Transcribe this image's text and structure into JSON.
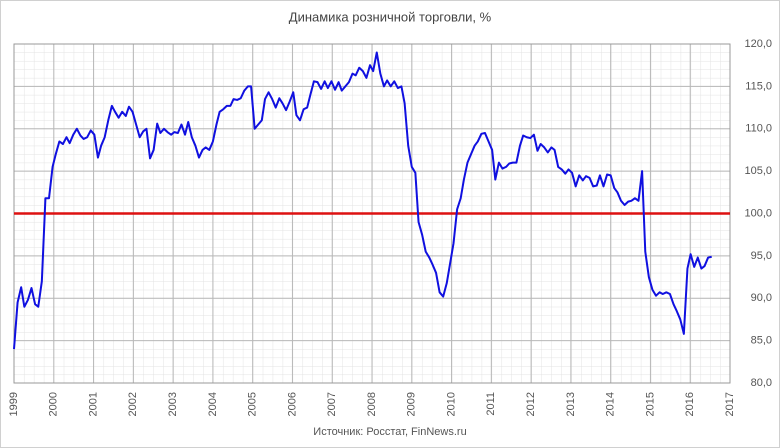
{
  "chart_data": {
    "type": "line",
    "title": "Динамика розничной торговли, %",
    "source": "Источник: Росстат, FinNews.ru",
    "x": [
      1999.0,
      1999.09,
      1999.18,
      1999.26,
      1999.35,
      1999.44,
      1999.53,
      1999.61,
      1999.7,
      1999.79,
      1999.88,
      1999.97,
      2000.05,
      2000.14,
      2000.23,
      2000.32,
      2000.4,
      2000.49,
      2000.58,
      2000.67,
      2000.75,
      2000.84,
      2000.93,
      2001.02,
      2001.11,
      2001.19,
      2001.28,
      2001.37,
      2001.46,
      2001.54,
      2001.63,
      2001.72,
      2001.81,
      2001.89,
      2001.98,
      2002.07,
      2002.16,
      2002.25,
      2002.33,
      2002.42,
      2002.51,
      2002.6,
      2002.68,
      2002.77,
      2002.86,
      2002.95,
      2003.03,
      2003.12,
      2003.21,
      2003.3,
      2003.38,
      2003.47,
      2003.56,
      2003.65,
      2003.74,
      2003.82,
      2003.91,
      2004.0,
      2004.09,
      2004.17,
      2004.26,
      2004.35,
      2004.44,
      2004.52,
      2004.61,
      2004.7,
      2004.79,
      2004.88,
      2004.96,
      2005.05,
      2005.14,
      2005.23,
      2005.31,
      2005.4,
      2005.49,
      2005.58,
      2005.67,
      2005.75,
      2005.84,
      2005.93,
      2006.02,
      2006.1,
      2006.19,
      2006.28,
      2006.37,
      2006.45,
      2006.54,
      2006.63,
      2006.72,
      2006.81,
      2006.89,
      2006.98,
      2007.07,
      2007.16,
      2007.24,
      2007.33,
      2007.42,
      2007.51,
      2007.59,
      2007.68,
      2007.77,
      2007.86,
      2007.95,
      2008.03,
      2008.12,
      2008.21,
      2008.3,
      2008.38,
      2008.47,
      2008.56,
      2008.65,
      2008.74,
      2008.82,
      2008.91,
      2009.0,
      2009.09,
      2009.17,
      2009.26,
      2009.35,
      2009.44,
      2009.52,
      2009.61,
      2009.7,
      2009.79,
      2009.88,
      2009.96,
      2010.05,
      2010.14,
      2010.23,
      2010.31,
      2010.4,
      2010.49,
      2010.58,
      2010.66,
      2010.75,
      2010.84,
      2010.93,
      2011.02,
      2011.1,
      2011.19,
      2011.28,
      2011.37,
      2011.45,
      2011.54,
      2011.63,
      2011.72,
      2011.8,
      2011.89,
      2011.98,
      2012.07,
      2012.16,
      2012.24,
      2012.33,
      2012.42,
      2012.51,
      2012.59,
      2012.68,
      2012.77,
      2012.86,
      2012.94,
      2013.03,
      2013.12,
      2013.21,
      2013.3,
      2013.38,
      2013.47,
      2013.56,
      2013.65,
      2013.73,
      2013.82,
      2013.91,
      2014.0,
      2014.09,
      2014.17,
      2014.26,
      2014.35,
      2014.44,
      2014.52,
      2014.61,
      2014.7,
      2014.79,
      2014.87,
      2014.96,
      2015.05,
      2015.14,
      2015.23,
      2015.31,
      2015.4,
      2015.49,
      2015.58,
      2015.66,
      2015.75,
      2015.84,
      2015.93,
      2016.01,
      2016.1,
      2016.19,
      2016.28,
      2016.36,
      2016.45,
      2016.54
    ],
    "series": [
      {
        "color": "#1010e0",
        "values": [
          84,
          89.5,
          91.3,
          89,
          89.8,
          91.2,
          89.3,
          89,
          92,
          101.8,
          101.8,
          105.5,
          107,
          108.5,
          108.2,
          109,
          108.3,
          109.3,
          110,
          109.2,
          108.8,
          109,
          109.8,
          109.3,
          106.6,
          108,
          109,
          111,
          112.7,
          112,
          111.3,
          112,
          111.5,
          112.6,
          112,
          110.5,
          109,
          109.7,
          110,
          106.5,
          107.5,
          110.6,
          109.5,
          110,
          109.6,
          109.3,
          109.6,
          109.5,
          110.5,
          109.3,
          110.8,
          109,
          108,
          106.6,
          107.5,
          107.8,
          107.5,
          108.5,
          110.5,
          112,
          112.3,
          112.7,
          112.7,
          113.5,
          113.4,
          113.6,
          114.5,
          115,
          115,
          110,
          110.5,
          111,
          113.5,
          114.3,
          113.5,
          112.5,
          113.6,
          113,
          112.2,
          113.2,
          114.3,
          111.6,
          111,
          112.3,
          112.5,
          114,
          115.6,
          115.5,
          114.7,
          115.6,
          114.8,
          115.6,
          114.6,
          115.5,
          114.5,
          115,
          115.5,
          116.5,
          116.3,
          117.2,
          116.8,
          116,
          117.5,
          116.8,
          119,
          116.5,
          115,
          115.7,
          115,
          115.6,
          114.8,
          115,
          113,
          108,
          105.5,
          104.8,
          99,
          97.5,
          95.5,
          94.8,
          94,
          93,
          90.7,
          90.2,
          91.8,
          94,
          96.5,
          100.5,
          101.8,
          104,
          106,
          107,
          108,
          108.5,
          109.4,
          109.5,
          108.5,
          107.5,
          104,
          106,
          105.3,
          105.5,
          105.9,
          106,
          106,
          108,
          109.2,
          109,
          108.9,
          109.3,
          107.4,
          108.2,
          107.8,
          107.2,
          107.8,
          107.5,
          105.5,
          105.2,
          104.7,
          105.2,
          104.8,
          103.2,
          104.5,
          103.9,
          104.4,
          104.2,
          103.2,
          103.3,
          104.5,
          103.2,
          104.6,
          104.5,
          103,
          102.5,
          101.5,
          101,
          101.4,
          101.5,
          101.8,
          101.5,
          105,
          95.5,
          92.5,
          91,
          90.3,
          90.7,
          90.5,
          90.7,
          90.5,
          89.3,
          88.5,
          87.5,
          85.8,
          93.5,
          95.2,
          93.7,
          94.8,
          93.5,
          93.8,
          94.8,
          94.9
        ]
      }
    ],
    "reference_line": {
      "value": 100,
      "color": "#dd1111"
    },
    "xlim": [
      1999,
      2017
    ],
    "xticks": [
      1999,
      2000,
      2001,
      2002,
      2003,
      2004,
      2005,
      2006,
      2007,
      2008,
      2009,
      2010,
      2011,
      2012,
      2013,
      2014,
      2015,
      2016,
      2017
    ],
    "ylim": [
      80,
      120
    ],
    "yticks": [
      {
        "value": 80,
        "label": "80,0"
      },
      {
        "value": 85,
        "label": "85,0"
      },
      {
        "value": 90,
        "label": "90,0"
      },
      {
        "value": 95,
        "label": "95,0"
      },
      {
        "value": 100,
        "label": "100,0"
      },
      {
        "value": 105,
        "label": "105,0"
      },
      {
        "value": 110,
        "label": "110,0"
      },
      {
        "value": 115,
        "label": "115,0"
      },
      {
        "value": 120,
        "label": "120,0"
      }
    ],
    "grid": true
  }
}
